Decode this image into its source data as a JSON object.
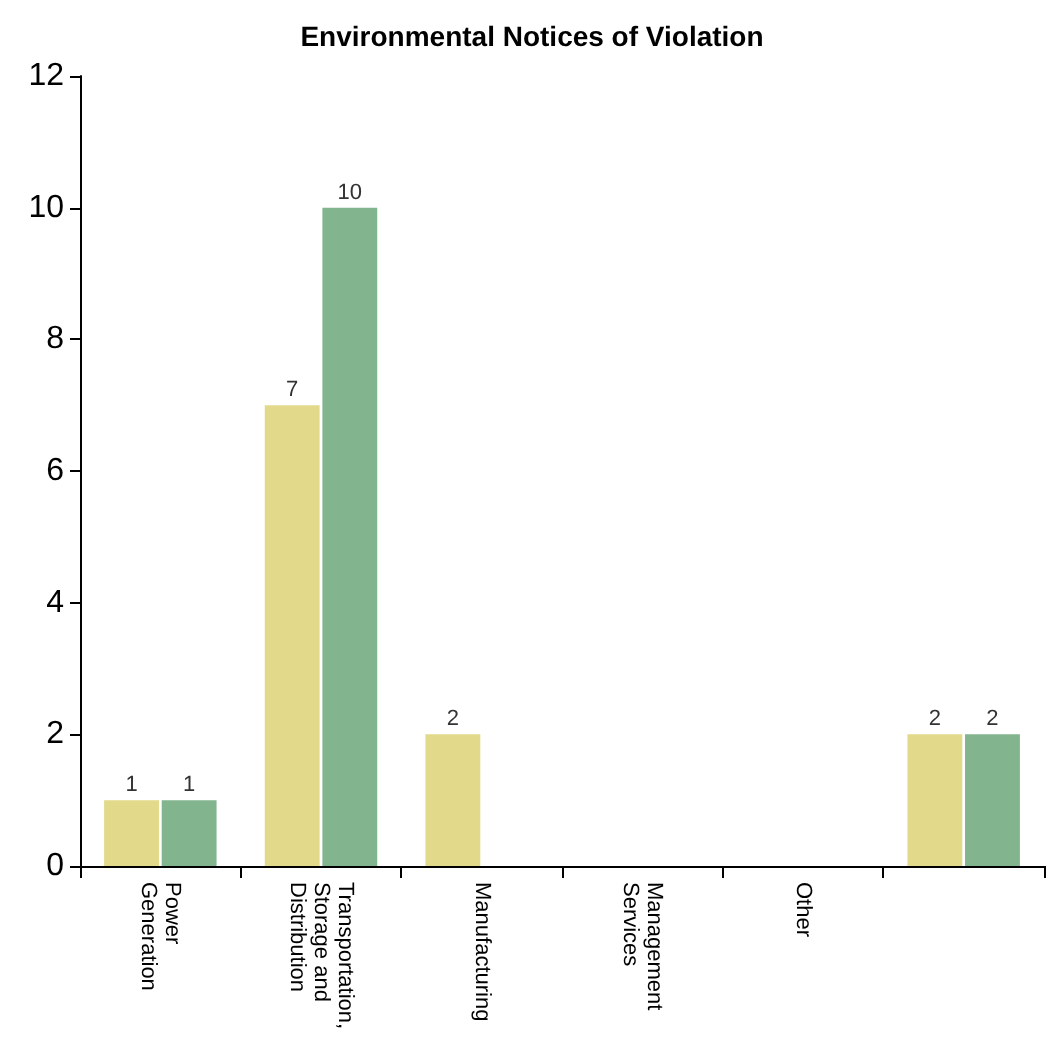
{
  "chart_data": {
    "type": "bar",
    "title": "Environmental Notices of Violation",
    "categories": [
      "Power Generation",
      "Transportation, Storage and Distribution",
      "Manufacturing",
      "Management Services",
      "Other",
      null
    ],
    "series": [
      {
        "color": "#e2da8a",
        "values": [
          1,
          7,
          2,
          null,
          null,
          2
        ]
      },
      {
        "color": "#82b48e",
        "values": [
          1,
          10,
          null,
          null,
          null,
          2
        ]
      }
    ],
    "ylim": [
      0,
      12
    ],
    "yticks": [
      0,
      2,
      4,
      6,
      8,
      10,
      12
    ],
    "data_labels": true,
    "grid": false
  }
}
